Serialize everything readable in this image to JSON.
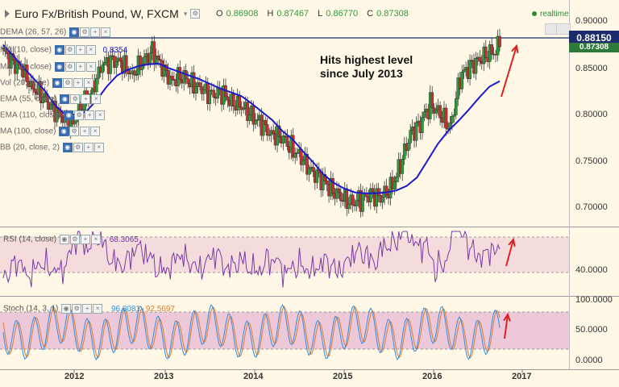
{
  "header": {
    "title": "Euro Fx/British Pound, W, FXCM",
    "ohlc": {
      "o_label": "O",
      "o": "0.86908",
      "h_label": "H",
      "h": "0.87467",
      "l_label": "L",
      "l": "0.86770",
      "c_label": "C",
      "c": "0.87308"
    },
    "realtime": "realtime"
  },
  "indicators": [
    {
      "label": "DEMA (26, 57, 26)"
    },
    {
      "label": "MA (10, close)",
      "value": "0.8354"
    },
    {
      "label": "MA (10, close)"
    },
    {
      "label": "Vol (20, false)"
    },
    {
      "label": "EMA (55, close)"
    },
    {
      "label": "EMA (110, close)"
    },
    {
      "label": "MA (100, close)"
    },
    {
      "label": "BB (20, close, 2)"
    }
  ],
  "annotation": {
    "line1": "Hits highest level",
    "line2": "since July 2013"
  },
  "price_tags": {
    "level": "0.88150",
    "last": "0.87308"
  },
  "rsi_panel": {
    "label": "RSI (14, close)",
    "value": "68.3065"
  },
  "stoch_panel": {
    "label": "Stoch (14, 3, 1)",
    "k": "96.8081",
    "d": "92.5697"
  },
  "axes": {
    "price_ticks": [
      "0.90000",
      "0.85000",
      "0.80000",
      "0.75000",
      "0.70000"
    ],
    "rsi_ticks": [
      "40.0000"
    ],
    "stoch_ticks": [
      "100.0000",
      "50.0000",
      "0.0000"
    ],
    "years": [
      "2012",
      "2013",
      "2014",
      "2015",
      "2016",
      "2017"
    ]
  },
  "colors": {
    "bg": "#fff8e6",
    "line": "#1a1acc",
    "rsi": "#7a3aa5",
    "stoch_k": "#2f8de4",
    "stoch_d": "#e07a2a",
    "up": "#2e9b3b",
    "down": "#c93030",
    "arrow": "#e02020"
  },
  "chart_data": {
    "type": "line",
    "series": [
      {
        "values": [
          0.867,
          0.857,
          0.845,
          0.83,
          0.818,
          0.808,
          0.793,
          0.792,
          0.81,
          0.83,
          0.852,
          0.86,
          0.853,
          0.845,
          0.855,
          0.87,
          0.848,
          0.838,
          0.84,
          0.835,
          0.825,
          0.823,
          0.822,
          0.815,
          0.807,
          0.8,
          0.788,
          0.78,
          0.775,
          0.765,
          0.752,
          0.74,
          0.73,
          0.721,
          0.71,
          0.705,
          0.708,
          0.715,
          0.71,
          0.72,
          0.745,
          0.78,
          0.79,
          0.812,
          0.8,
          0.785,
          0.84,
          0.852,
          0.86,
          0.865,
          0.873
        ]
      },
      {
        "values": [
          0.875,
          0.863,
          0.85,
          0.838,
          0.826,
          0.81,
          0.8,
          0.8,
          0.803,
          0.815,
          0.83,
          0.842,
          0.848,
          0.852,
          0.854,
          0.855,
          0.85,
          0.846,
          0.842,
          0.838,
          0.833,
          0.828,
          0.824,
          0.82,
          0.812,
          0.803,
          0.794,
          0.782,
          0.773,
          0.76,
          0.748,
          0.735,
          0.726,
          0.72,
          0.716,
          0.715,
          0.715,
          0.716,
          0.718,
          0.723,
          0.732,
          0.75,
          0.768,
          0.782,
          0.793,
          0.805,
          0.818,
          0.83,
          0.836
        ]
      }
    ]
  }
}
